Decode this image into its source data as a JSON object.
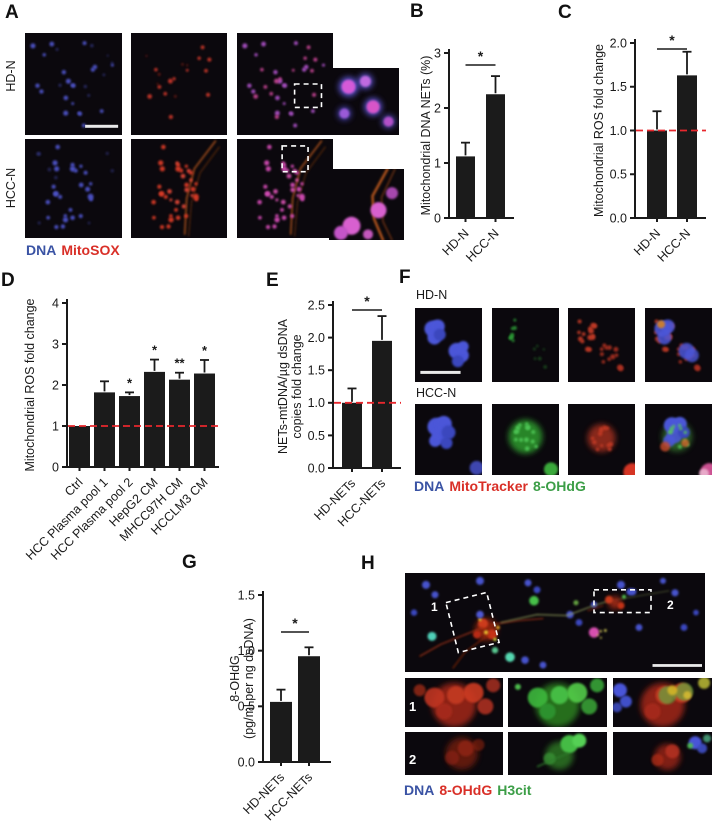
{
  "panels": {
    "A": {
      "letter": "A",
      "row_labels": [
        "HD-N",
        "HCC-N"
      ],
      "caption": [
        {
          "text": "DNA",
          "color": "#3a53a4"
        },
        {
          "text": "MitoSOX",
          "color": "#d92f27"
        }
      ]
    },
    "B": {
      "letter": "B"
    },
    "C": {
      "letter": "C"
    },
    "D": {
      "letter": "D"
    },
    "E": {
      "letter": "E"
    },
    "F": {
      "letter": "F",
      "row_labels": [
        "HD-N",
        "HCC-N"
      ],
      "caption": [
        {
          "text": "DNA",
          "color": "#3a53a4"
        },
        {
          "text": "MitoTracker",
          "color": "#d92f27"
        },
        {
          "text": "8-OHdG",
          "color": "#3c9e47"
        }
      ]
    },
    "G": {
      "letter": "G"
    },
    "H": {
      "letter": "H",
      "region_labels": [
        "1",
        "2"
      ],
      "caption": [
        {
          "text": "DNA",
          "color": "#3a53a4"
        },
        {
          "text": "8-OHdG",
          "color": "#d92f27"
        },
        {
          "text": "H3cit",
          "color": "#3c9e47"
        }
      ]
    }
  },
  "chart_data": [
    {
      "id": "B",
      "type": "bar",
      "categories": [
        "HD-N",
        "HCC-N"
      ],
      "values": [
        1.12,
        2.25
      ],
      "errors": [
        0.25,
        0.33
      ],
      "ylabel_lines": [
        "Mitochondrial DNA NETs (%)"
      ],
      "ylim": [
        0,
        3
      ],
      "yticks": [
        0,
        1,
        2,
        3
      ],
      "ytick_labels": [
        "0",
        "1",
        "2",
        "3"
      ],
      "significance": [
        {
          "pair": [
            0,
            1
          ],
          "label": "*"
        }
      ],
      "bar_color": "#1b1b1b",
      "grid": false
    },
    {
      "id": "C",
      "type": "bar",
      "categories": [
        "HD-N",
        "HCC-N"
      ],
      "values": [
        1.0,
        1.63
      ],
      "errors": [
        0.22,
        0.27
      ],
      "ylabel_lines": [
        "Mitochondrial ROS fold change"
      ],
      "ylim": [
        0,
        2
      ],
      "yticks": [
        0,
        0.5,
        1,
        1.5,
        2
      ],
      "ytick_labels": [
        "0.0",
        "0.5",
        "1.0",
        "1.5",
        "2.0"
      ],
      "refline": {
        "y": 1,
        "color": "#e8272d"
      },
      "significance": [
        {
          "pair": [
            0,
            1
          ],
          "label": "*"
        }
      ],
      "bar_color": "#1b1b1b",
      "grid": false
    },
    {
      "id": "D",
      "type": "bar",
      "categories": [
        "Ctrl",
        "HCC Plasma pool 1",
        "HCC Plasma pool 2",
        "HepG2 CM",
        "MHCC97H CM",
        "HCCLM3 CM"
      ],
      "values": [
        1.0,
        1.82,
        1.73,
        2.32,
        2.13,
        2.28
      ],
      "errors": [
        0,
        0.27,
        0.09,
        0.3,
        0.17,
        0.33
      ],
      "bar_stars": [
        "",
        "",
        "*",
        "*",
        "**",
        "*"
      ],
      "ylabel_lines": [
        "Mitochondrial ROS fold change"
      ],
      "ylim": [
        0,
        4
      ],
      "yticks": [
        0,
        1,
        2,
        3,
        4
      ],
      "ytick_labels": [
        "0",
        "1",
        "2",
        "3",
        "4"
      ],
      "refline": {
        "y": 1,
        "color": "#e8272d"
      },
      "bar_color": "#1b1b1b",
      "grid": false
    },
    {
      "id": "E",
      "type": "bar",
      "categories": [
        "HD-NETs",
        "HCC-NETs"
      ],
      "values": [
        1.0,
        1.95
      ],
      "errors": [
        0.22,
        0.38
      ],
      "ylabel_lines": [
        "NETs-mtDNA/µg dsDNA",
        "copies fold change"
      ],
      "ylim": [
        0,
        2.5
      ],
      "yticks": [
        0,
        0.5,
        1,
        1.5,
        2,
        2.5
      ],
      "ytick_labels": [
        "0.0",
        "0.5",
        "1.0",
        "1.5",
        "2.0",
        "2.5"
      ],
      "refline": {
        "y": 1,
        "color": "#e8272d"
      },
      "significance": [
        {
          "pair": [
            0,
            1
          ],
          "label": "*"
        }
      ],
      "bar_color": "#1b1b1b",
      "grid": false
    },
    {
      "id": "G",
      "type": "bar",
      "categories": [
        "HD-NETs",
        "HCC-NETs"
      ],
      "values": [
        0.54,
        0.95
      ],
      "errors": [
        0.11,
        0.08
      ],
      "ylabel_lines": [
        "8-OHdG",
        "(pg/ml per ng dsDNA)"
      ],
      "ylim": [
        0,
        1.5
      ],
      "yticks": [
        0,
        0.5,
        1,
        1.5
      ],
      "ytick_labels": [
        "0.0",
        "0.5",
        "1.0",
        "1.5"
      ],
      "significance": [
        {
          "pair": [
            0,
            1
          ],
          "label": "*"
        }
      ],
      "bar_color": "#1b1b1b",
      "grid": false
    }
  ]
}
